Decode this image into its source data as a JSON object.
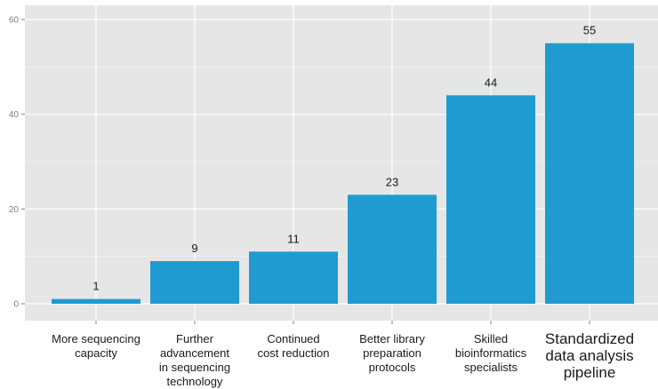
{
  "chart_data": {
    "type": "bar",
    "categories": [
      "More sequencing\ncapacity",
      "Further\nadvancement\nin sequencing\ntechnology",
      "Continued\ncost reduction",
      "Better library\npreparation\nprotocols",
      "Skilled\nbioinformatics\nspecialists",
      "Standardized\ndata analysis\npipeline"
    ],
    "values": [
      1,
      9,
      11,
      23,
      44,
      55
    ],
    "data_labels": [
      "1",
      "9",
      "11",
      "23",
      "44",
      "55"
    ],
    "title": "",
    "xlabel": "",
    "ylabel": "",
    "ylim": [
      0,
      60
    ],
    "yticks": [
      0,
      20,
      40,
      60
    ],
    "ytick_labels": [
      "0",
      "20",
      "40",
      "60"
    ],
    "grid": true,
    "colors": {
      "bar": "#1f9bd1",
      "panel": "#e6e6e6",
      "grid": "#ffffff"
    }
  }
}
